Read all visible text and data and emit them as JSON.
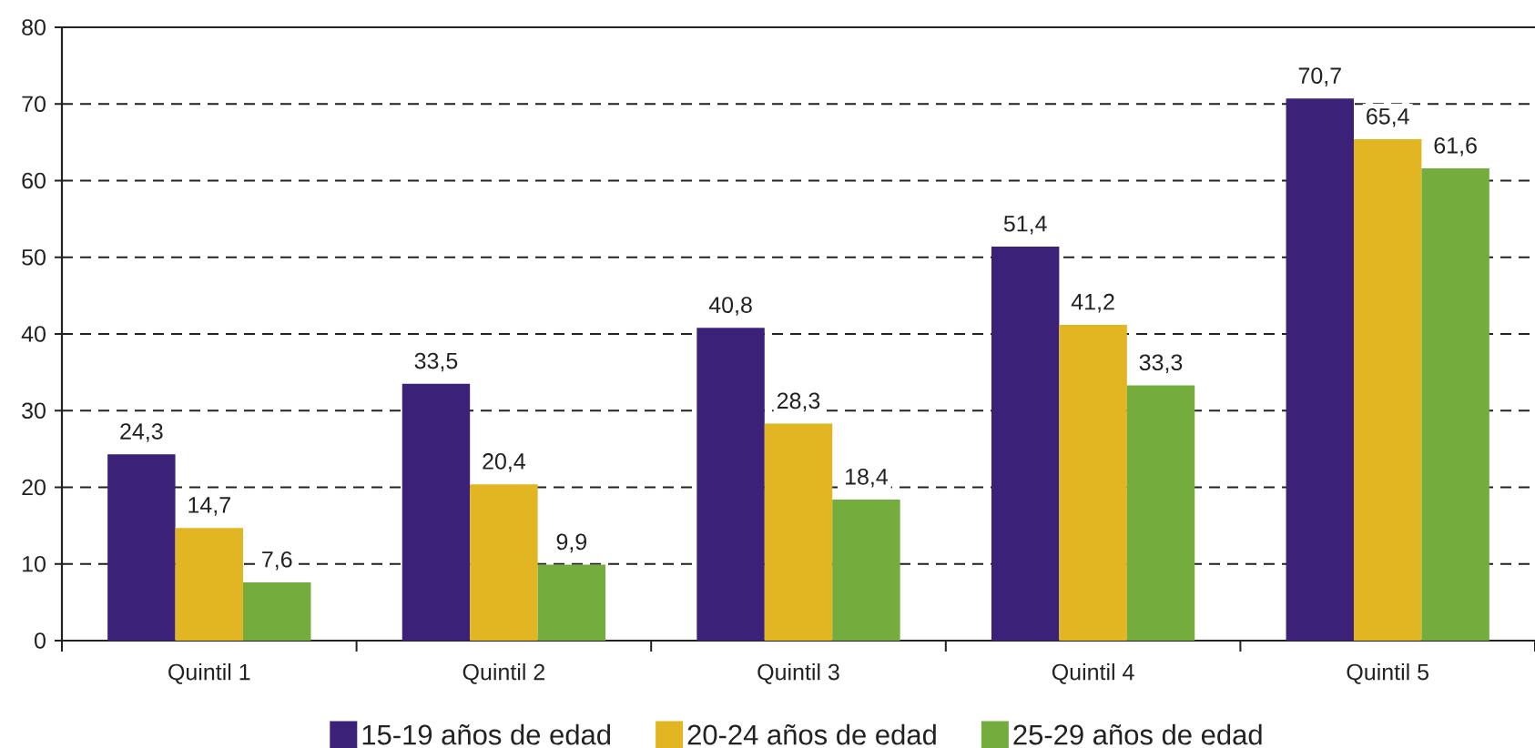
{
  "chart_data": {
    "type": "bar",
    "categories": [
      "Quintil 1",
      "Quintil 2",
      "Quintil 3",
      "Quintil 4",
      "Quintil 5"
    ],
    "series": [
      {
        "name": "15-19 años de edad",
        "color": "#3b2178",
        "values": [
          24.3,
          33.5,
          40.8,
          51.4,
          70.7
        ],
        "value_labels": [
          "24,3",
          "33,5",
          "40,8",
          "51,4",
          "70,7"
        ]
      },
      {
        "name": "20-24 años de edad",
        "color": "#e2b523",
        "values": [
          14.7,
          20.4,
          28.3,
          41.2,
          65.4
        ],
        "value_labels": [
          "14,7",
          "20,4",
          "28,3",
          "41,2",
          "65,4"
        ]
      },
      {
        "name": "25-29 años de edad",
        "color": "#74ad3e",
        "values": [
          7.6,
          9.9,
          18.4,
          33.3,
          61.6
        ],
        "value_labels": [
          "7,6",
          "9,9",
          "18,4",
          "33,3",
          "61,6"
        ]
      }
    ],
    "ylim": [
      0,
      80
    ],
    "yticks": [
      0,
      10,
      20,
      30,
      40,
      50,
      60,
      70,
      80
    ],
    "grid": "y",
    "legend": "bottom"
  }
}
